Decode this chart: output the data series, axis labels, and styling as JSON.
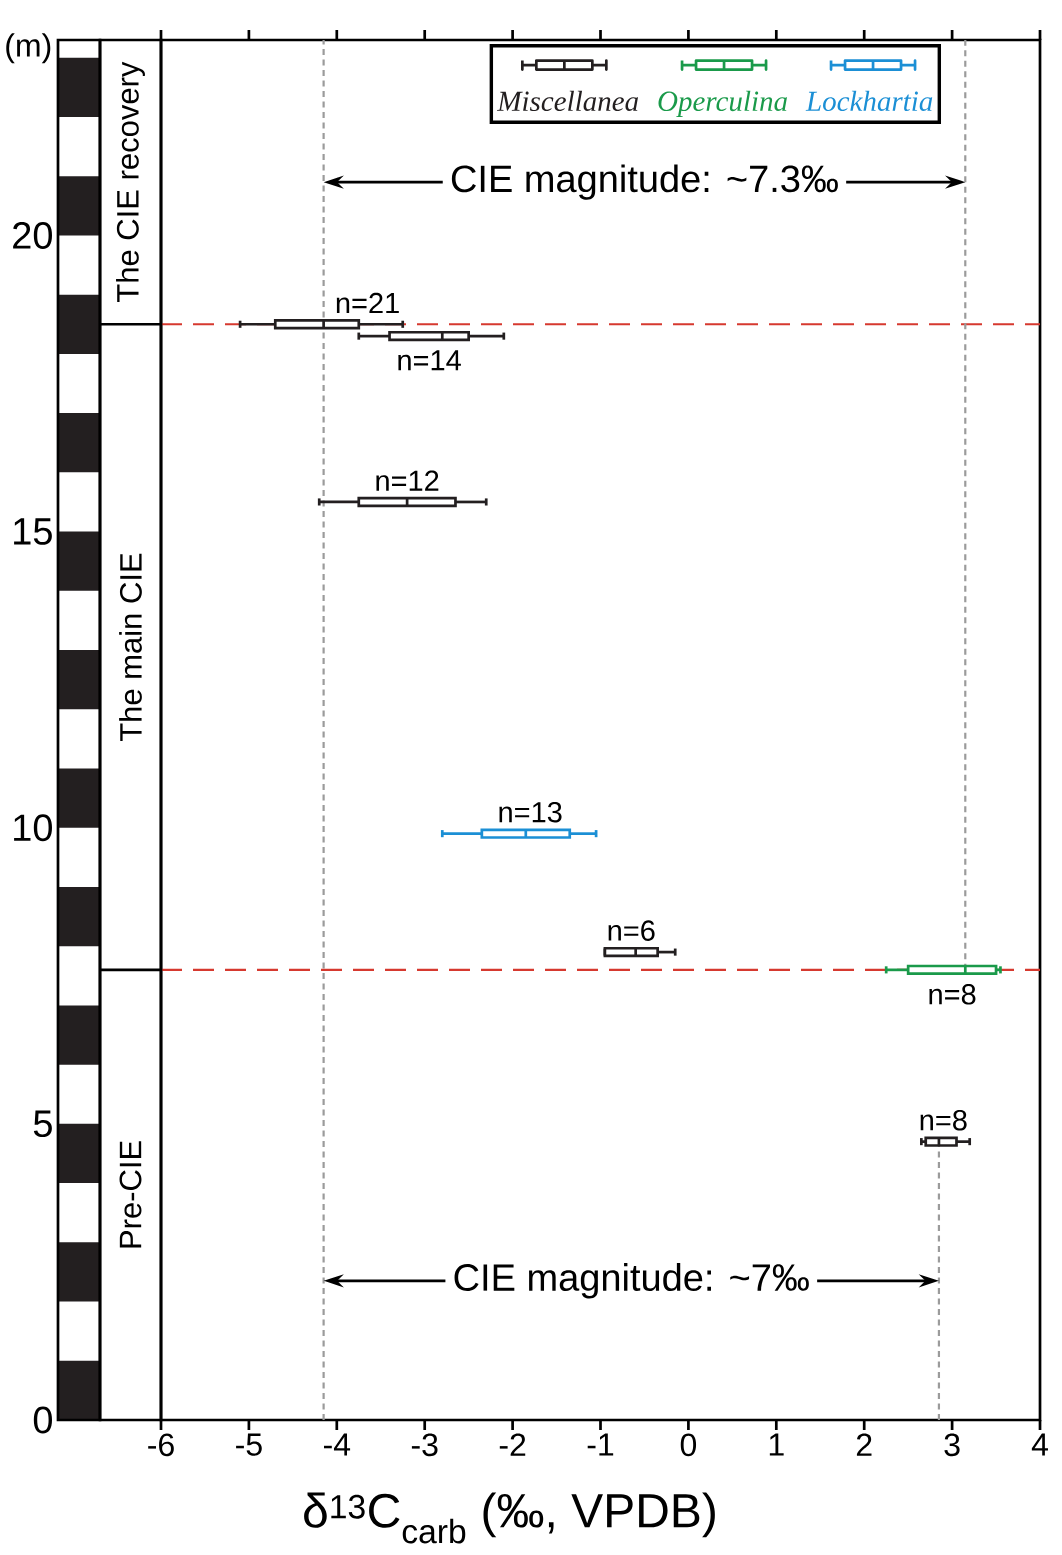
{
  "chart_data": {
    "type": "box",
    "orientation": "horizontal",
    "xlabel": "δ$^{13}$C$_{carb}$ (‰, VPDB)",
    "ylabel": "(m)",
    "xlim": [
      -6,
      4
    ],
    "xticks": [
      -6,
      -5,
      -4,
      -3,
      -2,
      -1,
      0,
      1,
      2,
      3,
      4
    ],
    "ylim": [
      0,
      23.3
    ],
    "yticks": [
      0,
      5,
      10,
      15,
      20
    ],
    "legend": "top right",
    "series": [
      {
        "name": "Miscellanea",
        "color": "#231f20",
        "x": [
          18.5,
          18.3,
          15.5,
          7.9,
          4.7
        ],
        "boxes": [
          {
            "low": -5.1,
            "q1": -4.7,
            "median": -4.15,
            "q3": -3.75,
            "high": -3.25
          },
          {
            "low": -3.75,
            "q1": -3.4,
            "median": -2.8,
            "q3": -2.5,
            "high": -2.1
          },
          {
            "low": -4.2,
            "q1": -3.75,
            "median": -3.2,
            "q3": -2.65,
            "high": -2.3
          },
          {
            "low": -0.95,
            "q1": -0.95,
            "median": -0.6,
            "q3": -0.35,
            "high": -0.15
          },
          {
            "low": 2.65,
            "q1": 2.7,
            "median": 2.85,
            "q3": 3.05,
            "high": 3.2
          }
        ]
      },
      {
        "name": "Operculina",
        "color": "#1a9a4a",
        "x": [
          7.6
        ],
        "boxes": [
          {
            "low": 2.25,
            "q1": 2.5,
            "median": 3.15,
            "q3": 3.5,
            "high": 3.55
          }
        ]
      },
      {
        "name": "Lockhartia",
        "color": "#1b8fd5",
        "x": [
          9.9
        ],
        "boxes": [
          {
            "low": -2.8,
            "q1": -2.35,
            "median": -1.85,
            "q3": -1.35,
            "high": -1.05
          }
        ]
      },
      {
        "type": "line",
        "color": "#9b9b9b",
        "line_style": "dotted",
        "x": [
          7.6,
          23.3
        ],
        "values": [
          3.15,
          3.15
        ]
      },
      {
        "type": "line",
        "color": "#9b9b9b",
        "line_style": "dotted",
        "x": [
          0,
          4.7
        ],
        "values": [
          2.85,
          2.85
        ]
      }
    ],
    "ref_lines": [
      {
        "axis": "x",
        "value": -4.15,
        "color": "#9b9b9b",
        "line_style": "dotted"
      },
      {
        "axis": "y",
        "value": 18.5,
        "color": "#d6392f",
        "line_style": "dashed"
      },
      {
        "axis": "y",
        "value": 7.6,
        "color": "#d6392f",
        "line_style": "dashed"
      }
    ],
    "annotations": [
      "The CIE recovery",
      "The main CIE",
      "Pre-CIE",
      "CIE magnitude: ~7.3‰",
      "CIE magnitude: ~7‰",
      {
        "text": "n=21",
        "x": -3.65,
        "y": 18.5
      },
      {
        "text": "n=14",
        "x": -2.95,
        "y": 18.3
      },
      {
        "text": "n=12",
        "x": -3.2,
        "y": 15.5
      },
      {
        "text": "n=13",
        "x": -1.8,
        "y": 9.9
      },
      {
        "text": "n=6",
        "x": -0.65,
        "y": 7.9
      },
      {
        "text": "n=8",
        "x": 3.0,
        "y": 7.6
      },
      {
        "text": "n=8",
        "x": 2.9,
        "y": 4.7
      }
    ]
  }
}
